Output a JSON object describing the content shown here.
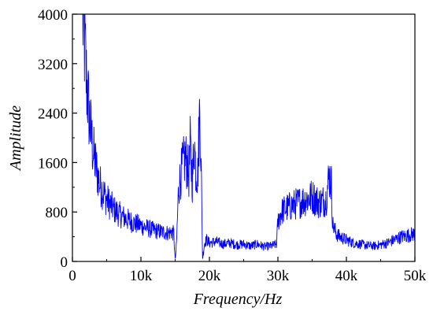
{
  "chart_data": {
    "type": "line",
    "title": "",
    "xlabel": "Frequency/Hz",
    "ylabel": "Amplitude",
    "xlim": [
      0,
      50000
    ],
    "ylim": [
      0,
      4000
    ],
    "x_ticks": [
      0,
      10000,
      20000,
      30000,
      40000,
      50000
    ],
    "x_tick_labels": [
      "0",
      "10k",
      "20k",
      "30k",
      "40k",
      "50k"
    ],
    "y_ticks": [
      0,
      800,
      1600,
      2400,
      3200,
      4000
    ],
    "y_tick_labels": [
      "0",
      "800",
      "1600",
      "2400",
      "3200",
      "4000"
    ],
    "grid": false,
    "legend": "none",
    "series_color": "#0000ff",
    "series": [
      {
        "x": [
          1500,
          1800,
          2000,
          2500,
          3000,
          3500,
          4000,
          5000,
          6000,
          7000,
          8000,
          9000,
          10000,
          11000,
          12000,
          13000,
          14000,
          14500,
          14800,
          15000,
          15200,
          15500,
          16000,
          16500,
          17000,
          17200,
          17500,
          17800,
          18000,
          18300,
          18600,
          18800,
          19000,
          19300,
          19600,
          20000,
          21000,
          22000,
          23000,
          24000,
          25000,
          26000,
          27000,
          28000,
          29000,
          29800,
          30000,
          30500,
          31000,
          32000,
          33000,
          34000,
          35000,
          36000,
          37000,
          37500,
          37800,
          38000,
          38500,
          39000,
          40000,
          41000,
          42000,
          43000,
          44000,
          45000,
          46000,
          47000,
          48000,
          49000,
          50000
        ],
        "values": [
          4000,
          3500,
          3000,
          2300,
          1800,
          1500,
          1250,
          1000,
          850,
          750,
          680,
          620,
          580,
          540,
          500,
          480,
          460,
          480,
          450,
          0,
          300,
          1200,
          1500,
          1700,
          1400,
          1850,
          1300,
          1950,
          1500,
          1400,
          2550,
          1500,
          50,
          300,
          350,
          300,
          320,
          280,
          300,
          270,
          280,
          250,
          280,
          240,
          250,
          280,
          650,
          800,
          850,
          900,
          950,
          1000,
          1050,
          950,
          1000,
          1400,
          1250,
          600,
          450,
          400,
          350,
          300,
          280,
          260,
          250,
          270,
          300,
          350,
          400,
          420,
          450
        ]
      }
    ]
  }
}
